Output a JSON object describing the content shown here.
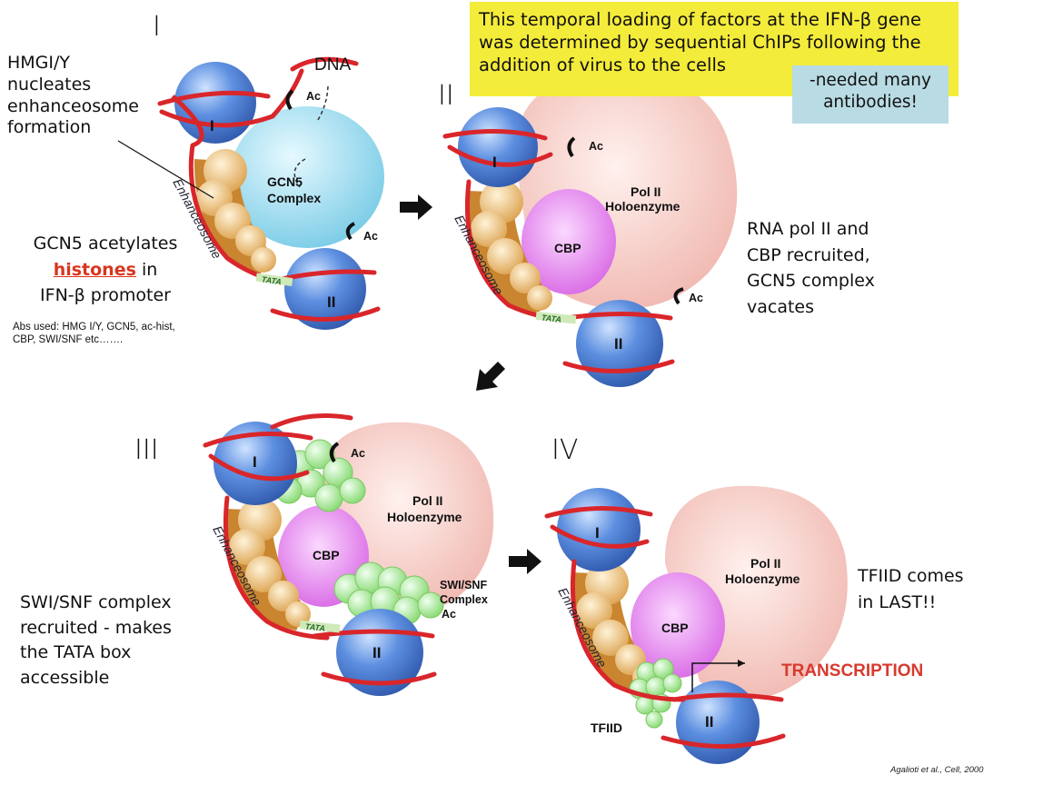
{
  "notes": {
    "temporal_note_lines": [
      "This temporal loading of factors at the IFN-β gene",
      "was determined by sequential ChIPs following the",
      "addition of virus to the cells"
    ],
    "antibodies_lines": [
      "-needed many",
      "antibodies!"
    ]
  },
  "stage_labels": [
    "I",
    "II",
    "III",
    "IV"
  ],
  "left_text": {
    "hmgi_lines": [
      "HMGI/Y",
      "nucleates",
      "enhanceosome",
      "formation"
    ],
    "gcn5_line1": "GCN5 acetylates",
    "gcn5_histones": "histones",
    "gcn5_in": " in",
    "gcn5_line3": "IFN-β promoter",
    "abs_line1": "Abs used: HMG I/Y, GCN5, ac-hist,",
    "abs_line2": "CBP, SWI/SNF etc…….",
    "swisnf_lines": [
      "SWI/SNF complex",
      "recruited - makes",
      "the TATA box",
      "accessible"
    ]
  },
  "right_text": {
    "rna_lines": [
      "RNA pol II and",
      "CBP recruited,",
      "GCN5 complex",
      "vacates"
    ],
    "tfiid_lines": [
      "TFIID comes",
      "in LAST!!"
    ],
    "transcription": "TRANSCRIPTION",
    "citation": "Agalioti et al., Cell, 2000"
  },
  "diagram_labels": {
    "dna": "DNA",
    "ac": "Ac",
    "gcn5_complex_lines": [
      "GCN5",
      "Complex"
    ],
    "pol_lines": [
      "Pol II",
      "Holoenzyme"
    ],
    "cbp": "CBP",
    "tata": "TATA",
    "nucleosome_1": "I",
    "nucleosome_2": "II",
    "enhanceosome": "Enhanceosome",
    "swisnf_lines": [
      "SWI/SNF",
      "Complex"
    ],
    "tfiid": "TFIID"
  },
  "colors": {
    "highlight_yellow": "#f4ec3a",
    "note_blue": "#b9dbe3",
    "dna_red": "#d9262b",
    "nucleosome_blue": "#4a7fd6",
    "gcn5_cyan": "#8fd8ec",
    "pol_pink": "#f6cfc8",
    "cbp_magenta": "#e07be8",
    "swisnf_green": "#a8ec94",
    "histone_accent": "#d8361f",
    "transcription_red": "#d73a2f"
  }
}
